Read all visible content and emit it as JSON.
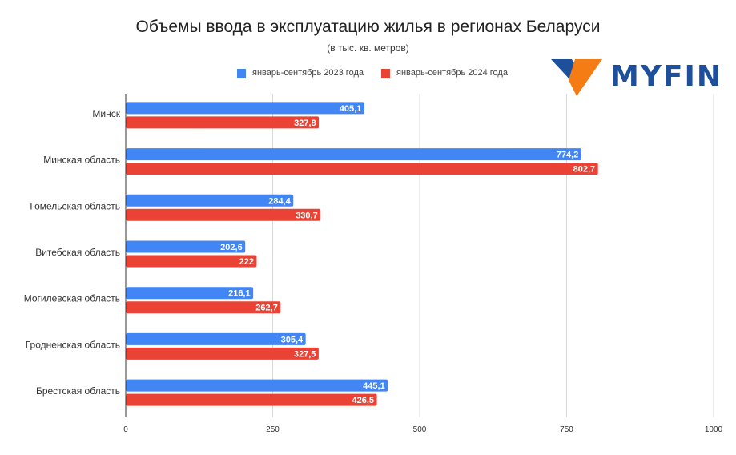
{
  "chart_data": {
    "type": "bar",
    "orientation": "horizontal",
    "title": "Объемы ввода в эксплуатацию жилья в регионах Беларуси",
    "subtitle": "(в тыс. кв. метров)",
    "xlabel": "",
    "ylabel": "",
    "xlim": [
      0,
      1000
    ],
    "xticks": [
      0,
      250,
      500,
      750,
      1000
    ],
    "xtick_labels": [
      "0",
      "250",
      "500",
      "750",
      "1000"
    ],
    "grid": true,
    "legend_position": "top-center",
    "categories": [
      "Минск",
      "Минская область",
      "Гомельская область",
      "Витебская область",
      "Могилевская область",
      "Гродненская область",
      "Брестская область"
    ],
    "series": [
      {
        "name": "январь-сентябрь 2023 года",
        "color": "#4285f4",
        "values": [
          405.1,
          774.2,
          284.4,
          202.6,
          216.1,
          305.4,
          445.1
        ],
        "labels": [
          "405,1",
          "774,2",
          "284,4",
          "202,6",
          "216,1",
          "305,4",
          "445,1"
        ]
      },
      {
        "name": "январь-сентябрь 2024 года",
        "color": "#ea4335",
        "values": [
          327.8,
          802.7,
          330.7,
          222,
          262.7,
          327.5,
          426.5
        ],
        "labels": [
          "327,8",
          "802,7",
          "330,7",
          "222",
          "262,7",
          "327,5",
          "426,5"
        ]
      }
    ]
  },
  "branding": {
    "logo_text": "MYFIN",
    "logo_colors": {
      "text": "#1d4f9a",
      "blue": "#1d4f9a",
      "orange": "#f57c14"
    }
  }
}
